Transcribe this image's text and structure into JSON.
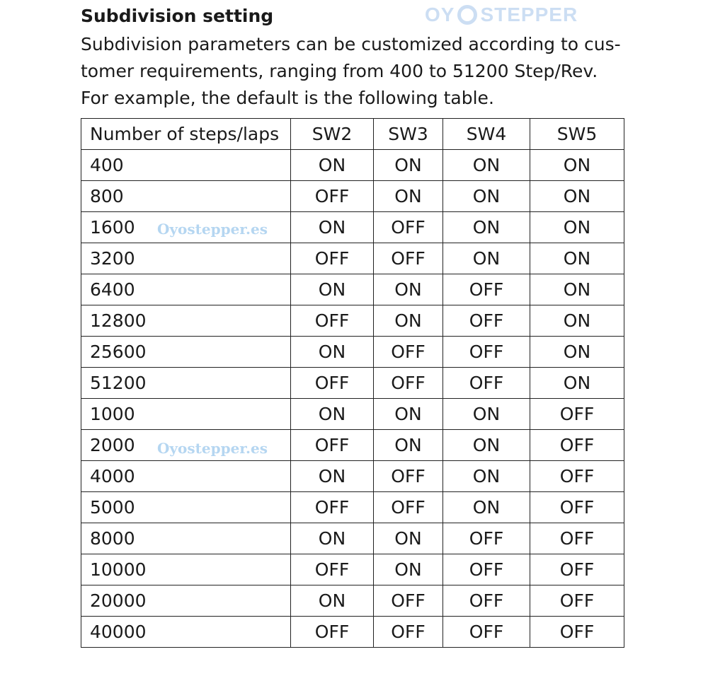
{
  "title": "Subdivision setting",
  "paragraph": "Subdivision parameters can be customized according to cus-tomer requirements, ranging from 400 to 51200 Step/Rev. For example, the default is the following table.",
  "paragraph_lines": [
    "Subdivision parameters can be customized according to cus-",
    "tomer requirements, ranging from 400 to 51200 Step/Rev.",
    "For example, the default is the following table."
  ],
  "table": {
    "headers": [
      "Number of steps/laps",
      "SW2",
      "SW3",
      "SW4",
      "SW5"
    ],
    "rows": [
      [
        "400",
        "ON",
        "ON",
        "ON",
        "ON"
      ],
      [
        "800",
        "OFF",
        "ON",
        "ON",
        "ON"
      ],
      [
        "1600",
        "ON",
        "OFF",
        "ON",
        "ON"
      ],
      [
        "3200",
        "OFF",
        "OFF",
        "ON",
        "ON"
      ],
      [
        "6400",
        "ON",
        "ON",
        "OFF",
        "ON"
      ],
      [
        "12800",
        "OFF",
        "ON",
        "OFF",
        "ON"
      ],
      [
        "25600",
        "ON",
        "OFF",
        "OFF",
        "ON"
      ],
      [
        "51200",
        "OFF",
        "OFF",
        "OFF",
        "ON"
      ],
      [
        "1000",
        "ON",
        "ON",
        "ON",
        "OFF"
      ],
      [
        "2000",
        "OFF",
        "ON",
        "ON",
        "OFF"
      ],
      [
        "4000",
        "ON",
        "OFF",
        "ON",
        "OFF"
      ],
      [
        "5000",
        "OFF",
        "OFF",
        "ON",
        "OFF"
      ],
      [
        "8000",
        "ON",
        "ON",
        "OFF",
        "OFF"
      ],
      [
        "10000",
        "OFF",
        "ON",
        "OFF",
        "OFF"
      ],
      [
        "20000",
        "ON",
        "OFF",
        "OFF",
        "OFF"
      ],
      [
        "40000",
        "OFF",
        "OFF",
        "OFF",
        "OFF"
      ]
    ]
  },
  "watermarks": {
    "small": "Oyostepper.es",
    "big_left": "OY",
    "big_right": "STEPPER"
  }
}
